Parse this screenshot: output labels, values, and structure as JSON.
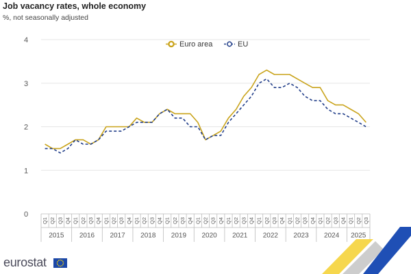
{
  "title": "Job vacancy rates, whole economy",
  "subtitle": "%, not seasonally adjusted",
  "logo_text": "eurostat",
  "colors": {
    "euro_area": "#c9a31a",
    "eu": "#1f3c88",
    "grid": "#e6e6e6",
    "axis_text": "#555555",
    "flag_blue": "#1b47a8",
    "flag_stars": "#ffdd00"
  },
  "chart_data": {
    "type": "line",
    "ylim": [
      0,
      4
    ],
    "y_ticks": [
      0,
      1,
      2,
      3,
      4
    ],
    "quarter_labels": [
      "Q1",
      "Q2",
      "Q3",
      "Q4"
    ],
    "years": [
      "2015",
      "2016",
      "2017",
      "2018",
      "2019",
      "2020",
      "2021",
      "2022",
      "2023",
      "2024",
      "2025"
    ],
    "quarters_in_last_year": 3,
    "legend_position": "top-center",
    "grid": true,
    "series": [
      {
        "name": "Euro area",
        "style": "solid",
        "values": [
          1.6,
          1.5,
          1.5,
          1.6,
          1.7,
          1.7,
          1.6,
          1.7,
          2.0,
          2.0,
          2.0,
          2.0,
          2.2,
          2.1,
          2.1,
          2.3,
          2.4,
          2.3,
          2.3,
          2.3,
          2.1,
          1.7,
          1.8,
          1.9,
          2.2,
          2.4,
          2.7,
          2.9,
          3.2,
          3.3,
          3.2,
          3.2,
          3.2,
          3.1,
          3.0,
          2.9,
          2.9,
          2.6,
          2.5,
          2.5,
          2.4,
          2.3,
          2.1
        ]
      },
      {
        "name": "EU",
        "style": "dashed",
        "values": [
          1.5,
          1.5,
          1.4,
          1.5,
          1.7,
          1.6,
          1.6,
          1.7,
          1.9,
          1.9,
          1.9,
          2.0,
          2.1,
          2.1,
          2.1,
          2.3,
          2.4,
          2.2,
          2.2,
          2.0,
          2.0,
          1.7,
          1.8,
          1.8,
          2.1,
          2.3,
          2.5,
          2.7,
          3.0,
          3.1,
          2.9,
          2.9,
          3.0,
          2.9,
          2.7,
          2.6,
          2.6,
          2.4,
          2.3,
          2.3,
          2.2,
          2.1,
          2.0
        ]
      }
    ]
  }
}
